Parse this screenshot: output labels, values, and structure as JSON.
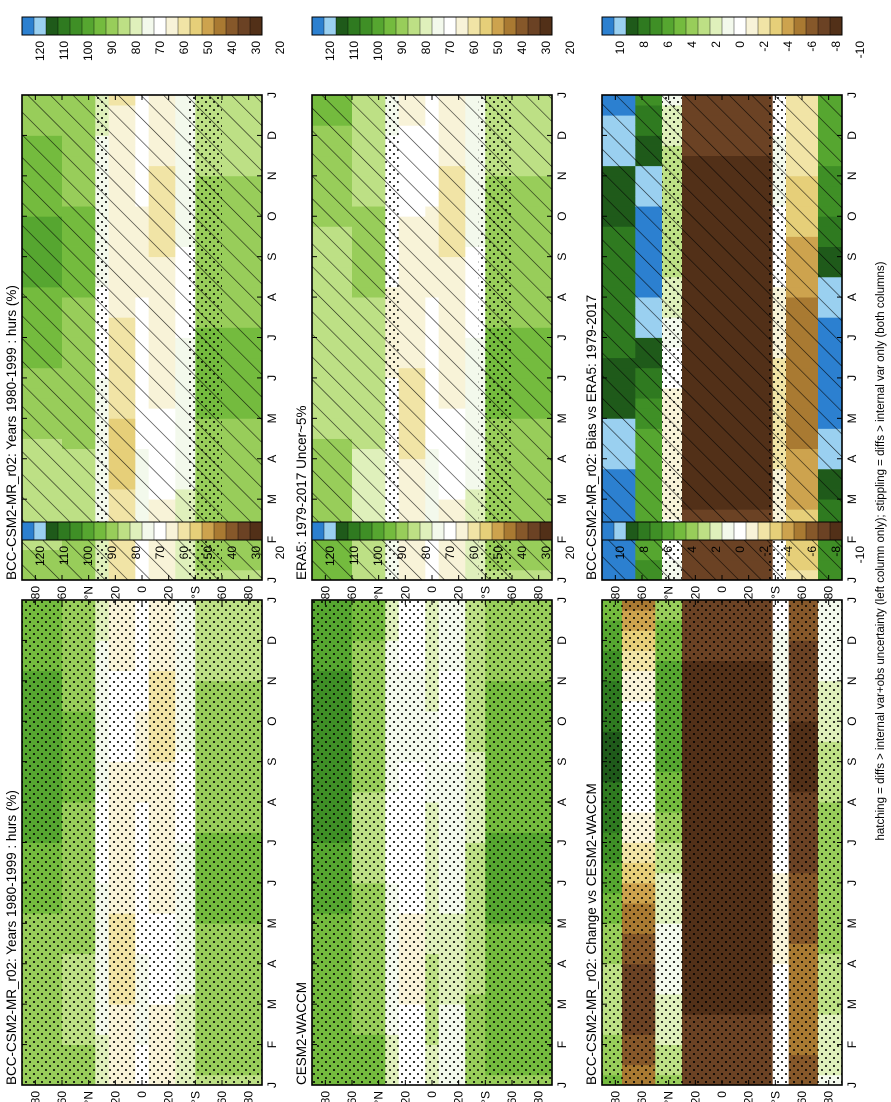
{
  "figure": {
    "footnote": "hatching = diffs > internal var+obs uncertainty (left column only); stippling = diffs > internal var only (both columns)"
  },
  "chart_data": [
    {
      "type": "heatmap",
      "id": "p1",
      "title": "BCC-CSM2-MR_r02: Years 1980-1999 : hurs (%)",
      "x_ticks": [
        "J",
        "F",
        "M",
        "A",
        "M",
        "J",
        "J",
        "A",
        "S",
        "O",
        "N",
        "D",
        "J"
      ],
      "y_ticks": [
        "80",
        "60",
        "°N",
        "20",
        "0",
        "20",
        "°S",
        "60",
        "80"
      ],
      "colorbar": {
        "labels": [
          "120",
          "110",
          "100",
          "90",
          "80",
          "70",
          "60",
          "50",
          "40",
          "30",
          "20"
        ],
        "colors": [
          "#2c80d0",
          "#9ad0f0",
          "#1f5a1a",
          "#2f7a20",
          "#3f8f26",
          "#56a630",
          "#74bb3e",
          "#98cd5a",
          "#bde085",
          "#dff0bb",
          "#f3f9ec",
          "#ffffff",
          "#f8f3d8",
          "#f1e4a6",
          "#e6cf79",
          "#cda34e",
          "#a97a32",
          "#86582a",
          "#6b4224",
          "#523018"
        ]
      },
      "bands": [
        {
          "lat": [
            60,
            90
          ],
          "class": 6,
          "min": 5,
          "max": 9,
          "peak_month": 2
        },
        {
          "lat": [
            35,
            60
          ],
          "class": 7,
          "min": 6,
          "max": 8,
          "peak_month": 2
        },
        {
          "lat": [
            25,
            35
          ],
          "class": 10,
          "min": 9,
          "max": 11,
          "peak_month": 6
        },
        {
          "lat": [
            5,
            25
          ],
          "class": 13,
          "min": 11,
          "max": 14,
          "peak_month": 3
        },
        {
          "lat": [
            -5,
            5
          ],
          "class": 11,
          "min": 10,
          "max": 12,
          "peak_month": 8
        },
        {
          "lat": [
            -25,
            -5
          ],
          "class": 12,
          "min": 11,
          "max": 13,
          "peak_month": 9
        },
        {
          "lat": [
            -40,
            -25
          ],
          "class": 10,
          "min": 9,
          "max": 11,
          "peak_month": 7
        },
        {
          "lat": [
            -90,
            -40
          ],
          "class": 7,
          "min": 6,
          "max": 8,
          "peak_month": 11
        }
      ],
      "stipple_all": false,
      "stipple_lat": [
        [
          25,
          35
        ],
        [
          -60,
          -35
        ]
      ],
      "hatch": true
    },
    {
      "type": "heatmap",
      "id": "p2",
      "title": "BCC-CSM2-MR_r02: Years 1980-1999 : hurs (%)",
      "x_ticks": [
        "J",
        "F",
        "M",
        "A",
        "M",
        "J",
        "J",
        "A",
        "S",
        "O",
        "N",
        "D",
        "J"
      ],
      "y_ticks": [
        "80",
        "60",
        "°N",
        "20",
        "0",
        "20",
        "°S",
        "60",
        "80"
      ],
      "colorbar": {
        "labels": [
          "120",
          "110",
          "100",
          "90",
          "80",
          "70",
          "60",
          "50",
          "40",
          "30",
          "20"
        ],
        "colors": [
          "#2c80d0",
          "#9ad0f0",
          "#1f5a1a",
          "#2f7a20",
          "#3f8f26",
          "#56a630",
          "#74bb3e",
          "#98cd5a",
          "#bde085",
          "#dff0bb",
          "#f3f9ec",
          "#ffffff",
          "#f8f3d8",
          "#f1e4a6",
          "#e6cf79",
          "#cda34e",
          "#a97a32",
          "#86582a",
          "#6b4224",
          "#523018"
        ]
      },
      "bands": [
        {
          "lat": [
            60,
            90
          ],
          "class": 6,
          "min": 4,
          "max": 8,
          "peak_month": 2
        },
        {
          "lat": [
            35,
            60
          ],
          "class": 7,
          "min": 6,
          "max": 8,
          "peak_month": 2
        },
        {
          "lat": [
            25,
            35
          ],
          "class": 10,
          "min": 9,
          "max": 11,
          "peak_month": 6
        },
        {
          "lat": [
            5,
            25
          ],
          "class": 12,
          "min": 11,
          "max": 13,
          "peak_month": 3
        },
        {
          "lat": [
            -5,
            5
          ],
          "class": 11,
          "min": 10,
          "max": 12,
          "peak_month": 8
        },
        {
          "lat": [
            -25,
            -5
          ],
          "class": 12,
          "min": 11,
          "max": 13,
          "peak_month": 9
        },
        {
          "lat": [
            -40,
            -25
          ],
          "class": 10,
          "min": 9,
          "max": 11,
          "peak_month": 7
        },
        {
          "lat": [
            -90,
            -40
          ],
          "class": 7,
          "min": 6,
          "max": 8,
          "peak_month": 11
        }
      ],
      "stipple_all": true,
      "stipple_lat": [],
      "hatch": false
    },
    {
      "type": "heatmap",
      "id": "p3",
      "title": "ERA5: 1979-2017 Uncer~5%",
      "x_ticks": [
        "J",
        "F",
        "M",
        "A",
        "M",
        "J",
        "J",
        "A",
        "S",
        "O",
        "N",
        "D",
        "J"
      ],
      "y_ticks": [
        "80",
        "60",
        "°N",
        "20",
        "0",
        "20",
        "°S",
        "60",
        "80"
      ],
      "colorbar": {
        "labels": [
          "120",
          "110",
          "100",
          "90",
          "80",
          "70",
          "60",
          "50",
          "40",
          "30",
          "20"
        ],
        "colors": [
          "#2c80d0",
          "#9ad0f0",
          "#1f5a1a",
          "#2f7a20",
          "#3f8f26",
          "#56a630",
          "#74bb3e",
          "#98cd5a",
          "#bde085",
          "#dff0bb",
          "#f3f9ec",
          "#ffffff",
          "#f8f3d8",
          "#f1e4a6",
          "#e6cf79",
          "#cda34e",
          "#a97a32",
          "#86582a",
          "#6b4224",
          "#523018"
        ]
      },
      "bands": [
        {
          "lat": [
            60,
            90
          ],
          "class": 7,
          "min": 6,
          "max": 9,
          "peak_month": 6
        },
        {
          "lat": [
            35,
            60
          ],
          "class": 8,
          "min": 7,
          "max": 9,
          "peak_month": 2
        },
        {
          "lat": [
            25,
            35
          ],
          "class": 11,
          "min": 10,
          "max": 12,
          "peak_month": 6
        },
        {
          "lat": [
            5,
            25
          ],
          "class": 12,
          "min": 11,
          "max": 13,
          "peak_month": 4
        },
        {
          "lat": [
            -5,
            5
          ],
          "class": 11,
          "min": 10,
          "max": 12,
          "peak_month": 8
        },
        {
          "lat": [
            -25,
            -5
          ],
          "class": 12,
          "min": 11,
          "max": 13,
          "peak_month": 9
        },
        {
          "lat": [
            -40,
            -25
          ],
          "class": 10,
          "min": 9,
          "max": 11,
          "peak_month": 7
        },
        {
          "lat": [
            -90,
            -40
          ],
          "class": 7,
          "min": 6,
          "max": 8,
          "peak_month": 11
        }
      ],
      "stipple_all": false,
      "stipple_lat": [
        [
          25,
          35
        ],
        [
          -60,
          -35
        ]
      ],
      "hatch": true
    },
    {
      "type": "heatmap",
      "id": "p4",
      "title": "CESM2-WACCM",
      "x_ticks": [
        "J",
        "F",
        "M",
        "A",
        "M",
        "J",
        "J",
        "A",
        "S",
        "O",
        "N",
        "D",
        "J"
      ],
      "y_ticks": [
        "80",
        "60",
        "°N",
        "20",
        "0",
        "20",
        "°S",
        "60",
        "80"
      ],
      "colorbar": {
        "labels": [
          "120",
          "110",
          "100",
          "90",
          "80",
          "70",
          "60",
          "50",
          "40",
          "30",
          "20"
        ],
        "colors": [
          "#2c80d0",
          "#9ad0f0",
          "#1f5a1a",
          "#2f7a20",
          "#3f8f26",
          "#56a630",
          "#74bb3e",
          "#98cd5a",
          "#bde085",
          "#dff0bb",
          "#f3f9ec",
          "#ffffff",
          "#f8f3d8",
          "#f1e4a6",
          "#e6cf79",
          "#cda34e",
          "#a97a32",
          "#86582a",
          "#6b4224",
          "#523018"
        ]
      },
      "bands": [
        {
          "lat": [
            60,
            90
          ],
          "class": 5,
          "min": 3,
          "max": 7,
          "peak_month": 2
        },
        {
          "lat": [
            35,
            60
          ],
          "class": 7,
          "min": 6,
          "max": 8,
          "peak_month": 6
        },
        {
          "lat": [
            25,
            35
          ],
          "class": 10,
          "min": 9,
          "max": 11,
          "peak_month": 6
        },
        {
          "lat": [
            5,
            25
          ],
          "class": 11,
          "min": 10,
          "max": 12,
          "peak_month": 3
        },
        {
          "lat": [
            -5,
            5
          ],
          "class": 9,
          "min": 8,
          "max": 10,
          "peak_month": 8
        },
        {
          "lat": [
            -25,
            -5
          ],
          "class": 10,
          "min": 9,
          "max": 11,
          "peak_month": 9
        },
        {
          "lat": [
            -40,
            -25
          ],
          "class": 8,
          "min": 7,
          "max": 9,
          "peak_month": 7
        },
        {
          "lat": [
            -90,
            -40
          ],
          "class": 6,
          "min": 5,
          "max": 7,
          "peak_month": 11
        }
      ],
      "stipple_all": true,
      "stipple_lat": [],
      "hatch": false
    },
    {
      "type": "heatmap",
      "id": "p5",
      "title": "BCC-CSM2-MR_r02: Bias vs ERA5: 1979-2017",
      "x_ticks": [
        "J",
        "F",
        "M",
        "A",
        "M",
        "J",
        "J",
        "A",
        "S",
        "O",
        "N",
        "D",
        "J"
      ],
      "y_ticks": [
        "80",
        "60",
        "°N",
        "20",
        "0",
        "20",
        "°S",
        "60",
        "80"
      ],
      "colorbar": {
        "labels": [
          "10",
          "8",
          "6",
          "4",
          "2",
          "0",
          "-2",
          "-4",
          "-6",
          "-8",
          "-10"
        ],
        "colors": [
          "#2c80d0",
          "#9ad0f0",
          "#1f5a1a",
          "#2f7a20",
          "#3f8f26",
          "#56a630",
          "#74bb3e",
          "#98cd5a",
          "#bde085",
          "#dff0bb",
          "#f3f9ec",
          "#ffffff",
          "#f8f3d8",
          "#f1e4a6",
          "#e6cf79",
          "#cda34e",
          "#a97a32",
          "#86582a",
          "#6b4224",
          "#523018"
        ]
      },
      "bands": [
        {
          "lat": [
            65,
            90
          ],
          "class": 0,
          "min": 0,
          "max": 5,
          "peak_month": 7
        },
        {
          "lat": [
            45,
            65
          ],
          "class": 0,
          "min": 0,
          "max": 9,
          "peak_month": 2
        },
        {
          "lat": [
            30,
            45
          ],
          "class": 10,
          "min": 6,
          "max": 14,
          "peak_month": 3
        },
        {
          "lat": [
            -38,
            30
          ],
          "class": 19,
          "min": 18,
          "max": 19,
          "peak_month": 6
        },
        {
          "lat": [
            -48,
            -38
          ],
          "class": 11,
          "min": 10,
          "max": 14,
          "peak_month": 4
        },
        {
          "lat": [
            -72,
            -48
          ],
          "class": 15,
          "min": 12,
          "max": 17,
          "peak_month": 5
        },
        {
          "lat": [
            -90,
            -72
          ],
          "class": 0,
          "min": 0,
          "max": 8,
          "peak_month": 11
        }
      ],
      "stipple_all": false,
      "stipple_lat": [
        [
          30,
          45
        ],
        [
          -48,
          -35
        ]
      ],
      "hatch": true
    },
    {
      "type": "heatmap",
      "id": "p6",
      "title": "BCC-CSM2-MR_r02: Change vs CESM2-WACCM",
      "x_ticks": [
        "J",
        "F",
        "M",
        "A",
        "M",
        "J",
        "J",
        "A",
        "S",
        "O",
        "N",
        "D",
        "J"
      ],
      "y_ticks": [
        "80",
        "60",
        "°N",
        "20",
        "0",
        "20",
        "°S",
        "60",
        "80"
      ],
      "colorbar": {
        "labels": [
          "10",
          "8",
          "6",
          "4",
          "2",
          "0",
          "-2",
          "-4",
          "-6",
          "-8",
          "-10"
        ],
        "colors": [
          "#2c80d0",
          "#9ad0f0",
          "#1f5a1a",
          "#2f7a20",
          "#3f8f26",
          "#56a630",
          "#74bb3e",
          "#98cd5a",
          "#bde085",
          "#dff0bb",
          "#f3f9ec",
          "#ffffff",
          "#f8f3d8",
          "#f1e4a6",
          "#e6cf79",
          "#cda34e",
          "#a97a32",
          "#86582a",
          "#6b4224",
          "#523018"
        ]
      },
      "bands": [
        {
          "lat": [
            75,
            90
          ],
          "class": 6,
          "min": 0,
          "max": 9,
          "peak_month": 2
        },
        {
          "lat": [
            50,
            75
          ],
          "class": 16,
          "min": 7,
          "max": 19,
          "peak_month": 2
        },
        {
          "lat": [
            30,
            50
          ],
          "class": 8,
          "min": 3,
          "max": 11,
          "peak_month": 3
        },
        {
          "lat": [
            -38,
            30
          ],
          "class": 19,
          "min": 18,
          "max": 19,
          "peak_month": 6
        },
        {
          "lat": [
            -50,
            -38
          ],
          "class": 11,
          "min": 10,
          "max": 12,
          "peak_month": 4
        },
        {
          "lat": [
            -72,
            -50
          ],
          "class": 18,
          "min": 15,
          "max": 19,
          "peak_month": 8
        },
        {
          "lat": [
            -90,
            -72
          ],
          "class": 8,
          "min": 6,
          "max": 11,
          "peak_month": 11
        }
      ],
      "stipple_all": true,
      "stipple_lat": [],
      "hatch": false
    }
  ]
}
